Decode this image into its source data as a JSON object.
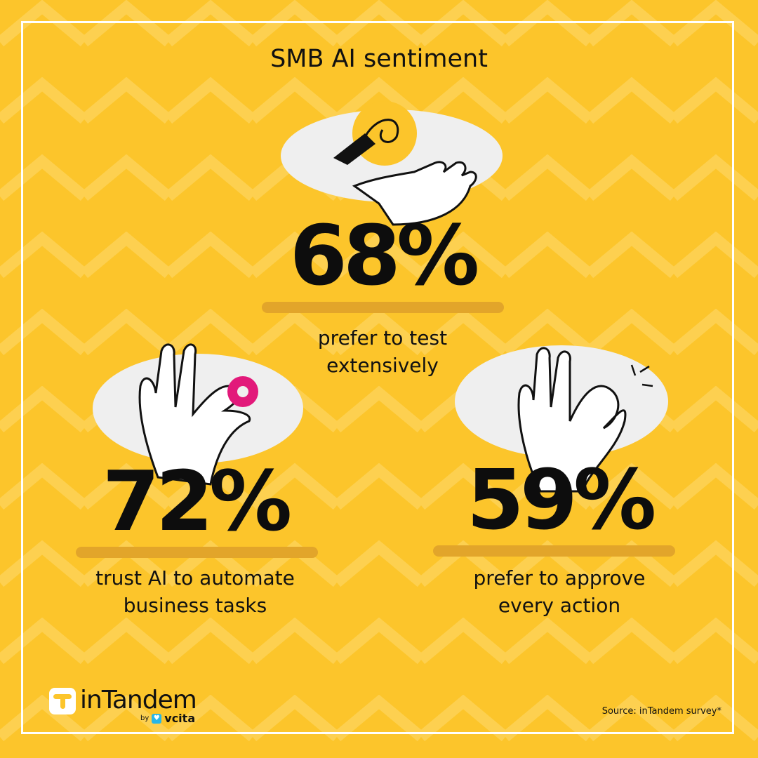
{
  "title": "SMB AI sentiment",
  "colors": {
    "background": "#fcc52b",
    "bar": "#e2a52a",
    "ellipse": "#efefef",
    "gear": "#e2197a",
    "text": "#0d0d0d"
  },
  "stats": [
    {
      "value": "68%",
      "caption_line1": "prefer to test",
      "caption_line2": "extensively",
      "icon": "hand-holding-pen-icon"
    },
    {
      "value": "72%",
      "caption_line1": "trust AI to automate",
      "caption_line2": "business tasks",
      "icon": "hand-holding-gear-icon"
    },
    {
      "value": "59%",
      "caption_line1": "prefer to approve",
      "caption_line2": "every action",
      "icon": "ok-hand-icon"
    }
  ],
  "logo": {
    "brand": "inTandem",
    "by": "by",
    "parent": "vcita"
  },
  "source": "Source: inTandem survey*"
}
